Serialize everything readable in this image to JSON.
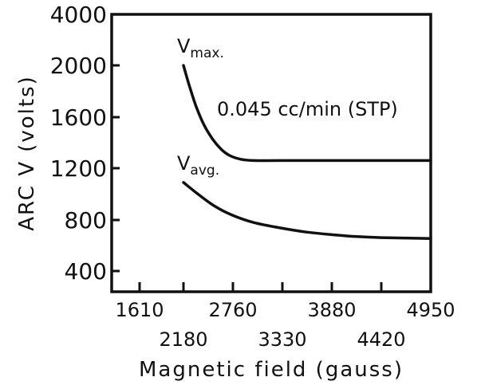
{
  "chart_data": {
    "type": "line",
    "xlabel": "Magnetic field (gauss)",
    "ylabel": "ARC V (volts)",
    "xlim": [
      1610,
      4950
    ],
    "ylim": [
      400,
      4000
    ],
    "x_ticks": [
      1610,
      2180,
      2760,
      3330,
      3880,
      4420,
      4950
    ],
    "y_ticks": [
      400,
      800,
      1200,
      1600,
      2000,
      4000
    ],
    "grid": false,
    "annotation": "0.045 cc/min (STP)",
    "series": [
      {
        "label_main": "V",
        "label_sub": "max.",
        "x": [
          2180,
          2250,
          2330,
          2420,
          2520,
          2620,
          2720,
          2850,
          3000,
          3330,
          3880,
          4420,
          4950
        ],
        "y": [
          2000,
          1840,
          1680,
          1540,
          1430,
          1350,
          1300,
          1270,
          1260,
          1260,
          1260,
          1260,
          1260
        ]
      },
      {
        "label_main": "V",
        "label_sub": "avg.",
        "x": [
          2180,
          2350,
          2550,
          2760,
          3000,
          3330,
          3600,
          3880,
          4150,
          4420,
          4950
        ],
        "y": [
          1090,
          1000,
          905,
          835,
          780,
          735,
          705,
          685,
          670,
          662,
          655
        ]
      }
    ]
  }
}
